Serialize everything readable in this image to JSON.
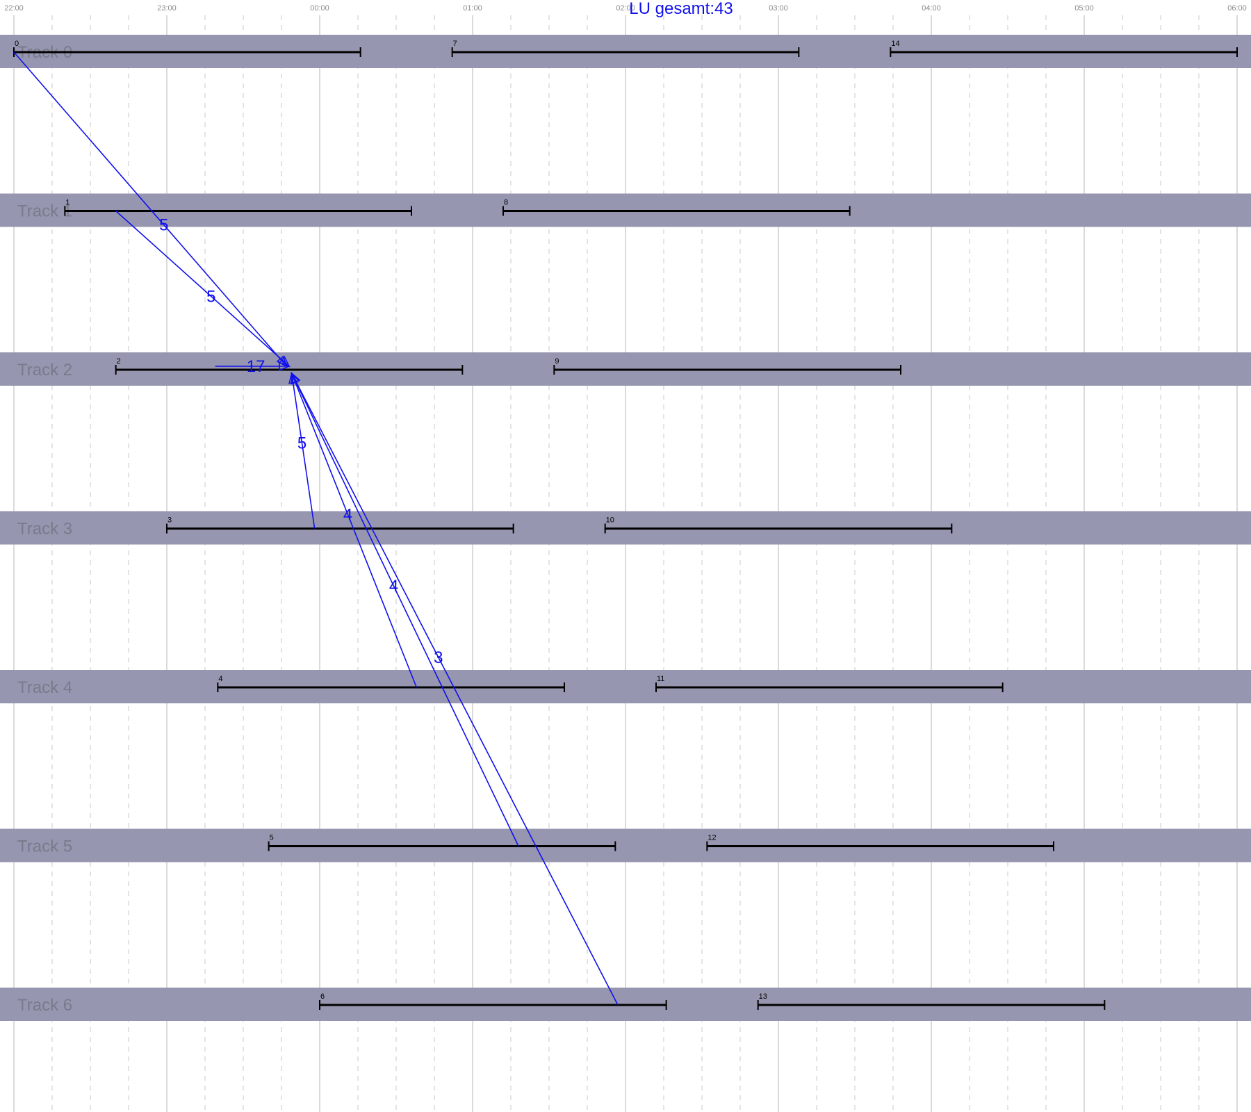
{
  "title": "LU gesamt:43",
  "colors": {
    "band": "#9696b0",
    "bar": "#000000",
    "flow": "#1010ee",
    "grid_major": "#b4b4b4",
    "grid_minor": "#c8c8c8",
    "track_label": "#7a7a8c"
  },
  "time_axis": {
    "start_min": 0,
    "end_min": 480,
    "major_step_min": 60,
    "minor_step_min": 15,
    "ticks": [
      "22:00",
      "23:00",
      "00:00",
      "01:00",
      "02:00",
      "03:00",
      "04:00",
      "05:00",
      "06:00"
    ]
  },
  "tracks": [
    {
      "label": "Track 0"
    },
    {
      "label": "Track 1"
    },
    {
      "label": "Track 2"
    },
    {
      "label": "Track 3"
    },
    {
      "label": "Track 4"
    },
    {
      "label": "Track 5"
    },
    {
      "label": "Track 6"
    }
  ],
  "bars": [
    {
      "id": "0",
      "track": 0,
      "start_min": 0,
      "end_min": 136
    },
    {
      "id": "7",
      "track": 0,
      "start_min": 172,
      "end_min": 308
    },
    {
      "id": "14",
      "track": 0,
      "start_min": 344,
      "end_min": 480
    },
    {
      "id": "1",
      "track": 1,
      "start_min": 20,
      "end_min": 156
    },
    {
      "id": "8",
      "track": 1,
      "start_min": 192,
      "end_min": 328
    },
    {
      "id": "2",
      "track": 2,
      "start_min": 40,
      "end_min": 176
    },
    {
      "id": "9",
      "track": 2,
      "start_min": 212,
      "end_min": 348
    },
    {
      "id": "3",
      "track": 3,
      "start_min": 60,
      "end_min": 196
    },
    {
      "id": "10",
      "track": 3,
      "start_min": 232,
      "end_min": 368
    },
    {
      "id": "4",
      "track": 4,
      "start_min": 80,
      "end_min": 216
    },
    {
      "id": "11",
      "track": 4,
      "start_min": 252,
      "end_min": 388
    },
    {
      "id": "5",
      "track": 5,
      "start_min": 100,
      "end_min": 236
    },
    {
      "id": "12",
      "track": 5,
      "start_min": 272,
      "end_min": 408
    },
    {
      "id": "6",
      "track": 6,
      "start_min": 120,
      "end_min": 256
    },
    {
      "id": "13",
      "track": 6,
      "start_min": 292,
      "end_min": 428
    }
  ],
  "flows": [
    {
      "label": "5",
      "from_track": 0,
      "from_min": 0,
      "to_track": 2,
      "to_min": 107,
      "arrow": true
    },
    {
      "label": "5",
      "from_track": 1,
      "from_min": 40,
      "to_track": 2,
      "to_min": 108,
      "arrow": true
    },
    {
      "label": "17",
      "from_track": 2,
      "from_min": 79,
      "to_track": 2,
      "to_min": 108,
      "arrow": true
    },
    {
      "label": "5",
      "from_track": 3,
      "from_min": 118,
      "to_track": 2,
      "to_min": 109,
      "arrow": true
    },
    {
      "label": "4",
      "from_track": 4,
      "from_min": 158,
      "to_track": 2,
      "to_min": 109,
      "arrow": true
    },
    {
      "label": "4",
      "from_track": 5,
      "from_min": 198,
      "to_track": 2,
      "to_min": 109,
      "arrow": true
    },
    {
      "label": "3",
      "from_track": 6,
      "from_min": 237,
      "to_track": 2,
      "to_min": 109,
      "arrow": true
    }
  ]
}
